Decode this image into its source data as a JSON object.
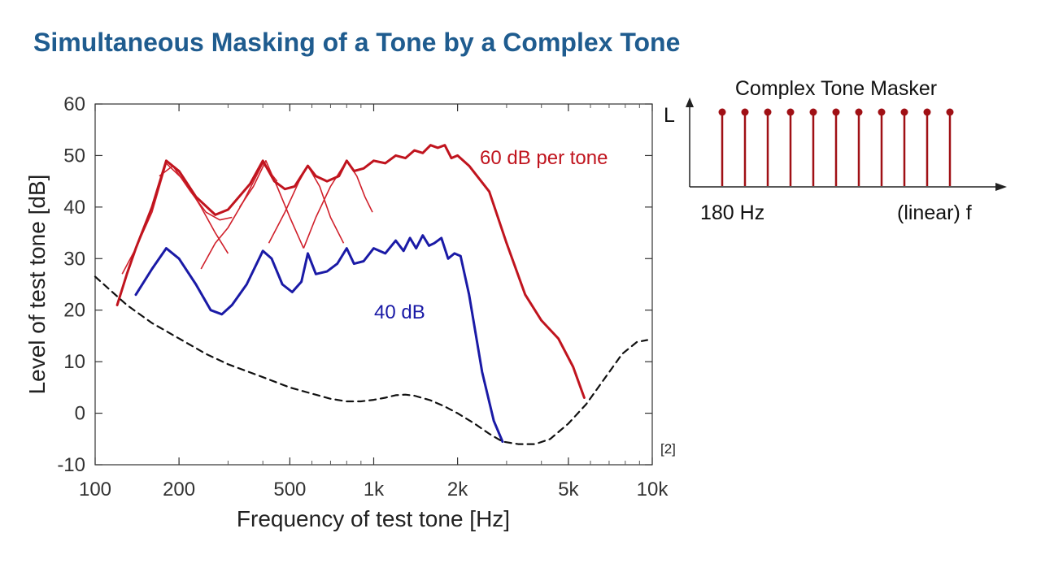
{
  "slide": {
    "title": "Simultaneous Masking of a Tone by a Complex Tone",
    "reference": "[2]"
  },
  "colors": {
    "title": "#1f5c8f",
    "masker_60": "#c0141e",
    "masker_40": "#1a1aa6",
    "threshold": "#111111"
  },
  "chart_data": {
    "type": "line",
    "xlabel": "Frequency of test tone [Hz]",
    "ylabel": "Level of test tone [dB]",
    "x_scale": "log",
    "xlim": [
      100,
      10000
    ],
    "ylim": [
      -10,
      60
    ],
    "x_ticks": [
      {
        "value": 100,
        "label": "100"
      },
      {
        "value": 200,
        "label": "200"
      },
      {
        "value": 500,
        "label": "500"
      },
      {
        "value": 1000,
        "label": "1k"
      },
      {
        "value": 2000,
        "label": "2k"
      },
      {
        "value": 5000,
        "label": "5k"
      },
      {
        "value": 10000,
        "label": "10k"
      }
    ],
    "y_ticks": [
      {
        "value": 60,
        "label": "60"
      },
      {
        "value": 50,
        "label": "50"
      },
      {
        "value": 40,
        "label": "40"
      },
      {
        "value": 30,
        "label": "30"
      },
      {
        "value": 20,
        "label": "20"
      },
      {
        "value": 10,
        "label": "10"
      },
      {
        "value": 0,
        "label": "0"
      },
      {
        "value": -10,
        "label": "-10"
      }
    ],
    "annotations": {
      "red": "60 dB per tone",
      "blue": "40 dB"
    },
    "series": [
      {
        "name": "60 dB per tone",
        "color": "#c0141e",
        "style": "solid",
        "points": [
          [
            120,
            21
          ],
          [
            130,
            27
          ],
          [
            140,
            32
          ],
          [
            160,
            40
          ],
          [
            180,
            49
          ],
          [
            200,
            47
          ],
          [
            230,
            42
          ],
          [
            270,
            38.5
          ],
          [
            300,
            39.5
          ],
          [
            360,
            44.5
          ],
          [
            400,
            49
          ],
          [
            440,
            45
          ],
          [
            480,
            43.5
          ],
          [
            520,
            44
          ],
          [
            580,
            48
          ],
          [
            620,
            46
          ],
          [
            680,
            45
          ],
          [
            750,
            46
          ],
          [
            800,
            49
          ],
          [
            850,
            47
          ],
          [
            920,
            47.5
          ],
          [
            1000,
            49
          ],
          [
            1100,
            48.5
          ],
          [
            1200,
            50
          ],
          [
            1300,
            49.5
          ],
          [
            1400,
            51
          ],
          [
            1500,
            50.5
          ],
          [
            1600,
            52
          ],
          [
            1700,
            51.5
          ],
          [
            1800,
            52
          ],
          [
            1900,
            49.5
          ],
          [
            2000,
            50
          ],
          [
            2200,
            48
          ],
          [
            2600,
            43
          ],
          [
            3000,
            33
          ],
          [
            3500,
            23
          ],
          [
            4000,
            18
          ],
          [
            4600,
            14.5
          ],
          [
            5200,
            9
          ],
          [
            5700,
            3
          ]
        ]
      },
      {
        "name": "40 dB",
        "color": "#1a1aa6",
        "style": "solid",
        "points": [
          [
            140,
            23
          ],
          [
            160,
            28
          ],
          [
            180,
            32
          ],
          [
            200,
            30
          ],
          [
            230,
            25
          ],
          [
            260,
            20
          ],
          [
            285,
            19.2
          ],
          [
            310,
            21
          ],
          [
            350,
            25
          ],
          [
            400,
            31.5
          ],
          [
            430,
            30
          ],
          [
            470,
            25
          ],
          [
            510,
            23.5
          ],
          [
            550,
            25.5
          ],
          [
            580,
            31
          ],
          [
            620,
            27
          ],
          [
            680,
            27.5
          ],
          [
            740,
            29
          ],
          [
            800,
            32
          ],
          [
            850,
            29
          ],
          [
            920,
            29.5
          ],
          [
            1000,
            32
          ],
          [
            1100,
            31
          ],
          [
            1200,
            33.5
          ],
          [
            1280,
            31.5
          ],
          [
            1350,
            34
          ],
          [
            1420,
            32
          ],
          [
            1500,
            34.5
          ],
          [
            1580,
            32.5
          ],
          [
            1650,
            33
          ],
          [
            1750,
            34
          ],
          [
            1850,
            30
          ],
          [
            1950,
            31
          ],
          [
            2050,
            30.5
          ],
          [
            2200,
            23
          ],
          [
            2450,
            8
          ],
          [
            2700,
            -1.5
          ],
          [
            2900,
            -5.5
          ]
        ]
      },
      {
        "name": "",
        "color": "#111111",
        "style": "dashed",
        "points": [
          [
            100,
            26.5
          ],
          [
            130,
            21
          ],
          [
            160,
            17.5
          ],
          [
            200,
            14.5
          ],
          [
            250,
            11.5
          ],
          [
            300,
            9.5
          ],
          [
            400,
            7
          ],
          [
            500,
            5
          ],
          [
            600,
            3.8
          ],
          [
            700,
            2.8
          ],
          [
            800,
            2.3
          ],
          [
            900,
            2.3
          ],
          [
            1000,
            2.6
          ],
          [
            1100,
            3
          ],
          [
            1200,
            3.5
          ],
          [
            1300,
            3.6
          ],
          [
            1400,
            3.4
          ],
          [
            1600,
            2.5
          ],
          [
            1800,
            1.3
          ],
          [
            2000,
            0
          ],
          [
            2300,
            -2
          ],
          [
            2600,
            -4
          ],
          [
            2900,
            -5.5
          ],
          [
            3300,
            -6
          ],
          [
            3800,
            -6
          ],
          [
            4300,
            -5
          ],
          [
            5000,
            -2
          ],
          [
            5800,
            1.8
          ],
          [
            6800,
            7
          ],
          [
            7800,
            11.5
          ],
          [
            8800,
            13.8
          ],
          [
            9600,
            14.2
          ]
        ]
      }
    ],
    "masking_branches": [
      [
        [
          125,
          27
        ],
        [
          140,
          32
        ],
        [
          160,
          39
        ],
        [
          180,
          48.5
        ],
        [
          210,
          45
        ],
        [
          240,
          40
        ],
        [
          270,
          35
        ],
        [
          300,
          31
        ]
      ],
      [
        [
          170,
          46
        ],
        [
          190,
          48
        ],
        [
          220,
          43
        ],
        [
          250,
          39
        ],
        [
          280,
          37.5
        ],
        [
          310,
          38
        ]
      ],
      [
        [
          240,
          28
        ],
        [
          270,
          33
        ],
        [
          300,
          36
        ],
        [
          340,
          41
        ],
        [
          400,
          48.5
        ],
        [
          450,
          45
        ]
      ],
      [
        [
          330,
          40
        ],
        [
          370,
          44
        ],
        [
          410,
          49
        ],
        [
          450,
          44
        ],
        [
          500,
          38
        ],
        [
          560,
          32
        ]
      ],
      [
        [
          420,
          33
        ],
        [
          480,
          39
        ],
        [
          540,
          45
        ],
        [
          580,
          48
        ],
        [
          640,
          44
        ],
        [
          700,
          38
        ],
        [
          780,
          33
        ]
      ],
      [
        [
          560,
          32
        ],
        [
          620,
          38
        ],
        [
          700,
          44
        ],
        [
          800,
          49
        ],
        [
          870,
          46
        ],
        [
          930,
          42
        ],
        [
          990,
          39
        ]
      ]
    ],
    "masking_branches_note_color": "#d0202b"
  },
  "inset": {
    "title": "Complex Tone Masker",
    "y_axis_label": "L",
    "x_start_label": "180 Hz",
    "x_axis_label": "(linear) f",
    "harmonic_count": 11,
    "stem_color": "#a01015"
  }
}
